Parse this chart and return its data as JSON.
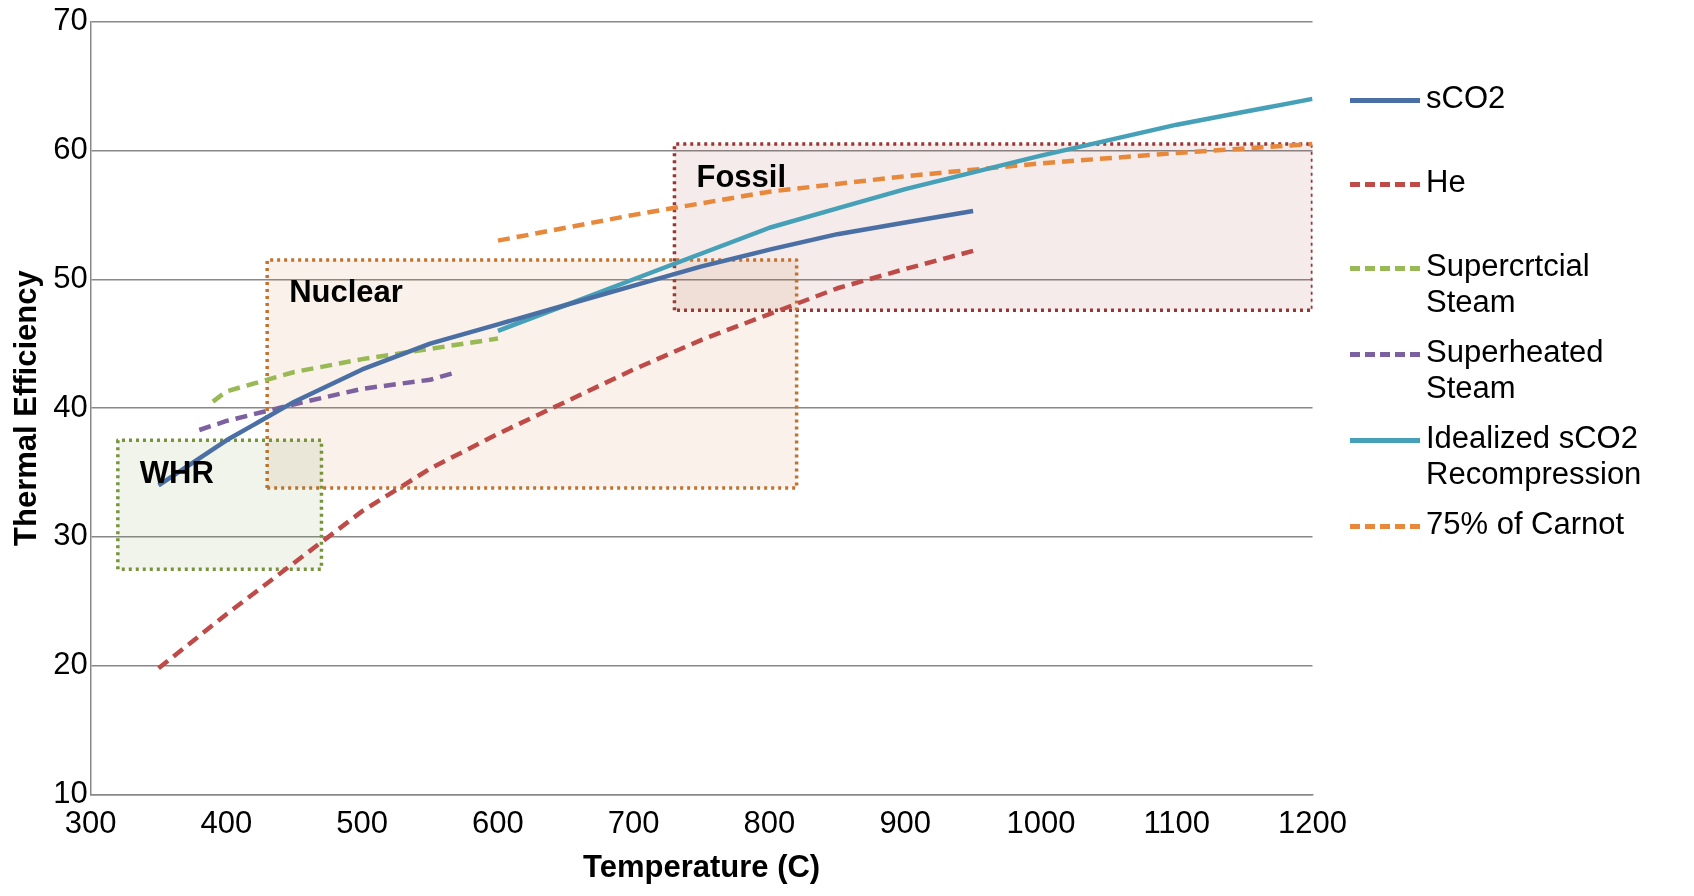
{
  "chart_data": {
    "type": "line",
    "xlabel": "Temperature (C)",
    "ylabel": "Thermal Efficiency",
    "xlim": [
      300,
      1200
    ],
    "xticks": [
      300,
      400,
      500,
      600,
      700,
      800,
      900,
      1000,
      1100,
      1200
    ],
    "ylim": [
      10,
      70
    ],
    "yticks": [
      10,
      20,
      30,
      40,
      50,
      60,
      70
    ],
    "grid": "y",
    "legend": "right",
    "marker": "none",
    "series": [
      {
        "name": "WHR",
        "type": "area",
        "color": "#77933c",
        "line_style": "dotted",
        "x": [
          320,
          320,
          470,
          470,
          320
        ],
        "values": [
          27.5,
          37.5,
          37.5,
          27.5,
          27.5
        ]
      },
      {
        "name": "Nuclear",
        "type": "area",
        "color": "#c0722f",
        "line_style": "dotted",
        "x": [
          430,
          430,
          820,
          820,
          430
        ],
        "values": [
          33.8,
          51.5,
          51.5,
          33.8,
          33.8
        ]
      },
      {
        "name": "Fossil",
        "type": "area",
        "color": "#953735",
        "line_style": "dotted",
        "x": [
          730,
          730,
          1200,
          1200,
          730
        ],
        "values": [
          47.6,
          60.5,
          60.5,
          47.6,
          47.6
        ]
      },
      {
        "name": "sCO2",
        "color": "#4a6fa5",
        "line_style": "solid",
        "x": [
          350,
          400,
          450,
          500,
          550,
          600,
          650,
          700,
          750,
          800,
          850,
          900,
          950
        ],
        "values": [
          34,
          37.5,
          40.5,
          43,
          45,
          46.5,
          48,
          49.5,
          51,
          52.3,
          53.5,
          54.4,
          55.3
        ]
      },
      {
        "name": "He",
        "color": "#be4b48",
        "line_style": "dashed",
        "x": [
          350,
          400,
          450,
          500,
          550,
          600,
          650,
          700,
          750,
          800,
          850,
          900,
          950
        ],
        "values": [
          19.8,
          24,
          28,
          32,
          35.3,
          38,
          40.5,
          43,
          45.3,
          47.3,
          49.3,
          50.8,
          52.2
        ]
      },
      {
        "name": "Supercrtcial Steam",
        "color": "#98b954",
        "line_style": "dashed",
        "x": [
          390,
          400,
          450,
          500,
          550,
          600
        ],
        "values": [
          40.5,
          41.3,
          42.8,
          43.8,
          44.6,
          45.4
        ]
      },
      {
        "name": "Superheated Steam",
        "color": "#7d60a0",
        "line_style": "dashed",
        "x": [
          380,
          400,
          450,
          500,
          550,
          570
        ],
        "values": [
          38.3,
          39,
          40.3,
          41.5,
          42.2,
          42.8
        ]
      },
      {
        "name": "Idealized sCO2 Recompression",
        "color": "#46a0b8",
        "line_style": "solid",
        "x": [
          600,
          650,
          700,
          750,
          800,
          850,
          900,
          950,
          1000,
          1050,
          1100,
          1150,
          1200
        ],
        "values": [
          46,
          48,
          50,
          52,
          54,
          55.5,
          57,
          58.3,
          59.6,
          60.8,
          62,
          63,
          64
        ]
      },
      {
        "name": "75% of Carnot",
        "color": "#e8883a",
        "line_style": "dashed",
        "x": [
          600,
          700,
          800,
          900,
          1000,
          1100,
          1200
        ],
        "values": [
          53,
          55,
          56.8,
          58,
          59,
          59.8,
          60.5
        ]
      }
    ]
  }
}
